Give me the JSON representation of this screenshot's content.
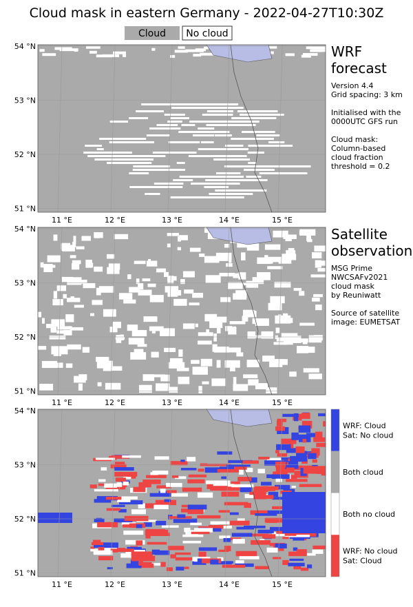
{
  "title": "Cloud mask in eastern Germany - 2022-04-27T10:30Z",
  "legend": [
    "Cloud",
    "No cloud"
  ],
  "panels": [
    {
      "heading": [
        "WRF",
        "forecast"
      ],
      "notes": [
        "Version 4.4",
        "Grid spacing: 3 km",
        "",
        "Initialised with the",
        "0000UTC GFS run",
        "",
        "Cloud mask:",
        "Column-based",
        "cloud fraction",
        "threshold = 0.2"
      ],
      "lat_labels": [
        "54 °N",
        "53 °N",
        "52 °N",
        "51 °N"
      ],
      "lon_labels": [
        "11 °E",
        "12 °E",
        "13 °E",
        "14 °E",
        "15 °E"
      ]
    },
    {
      "heading": [
        "Satellite",
        "observation"
      ],
      "notes": [
        "MSG Prime",
        "NWCSAFv2021",
        "cloud mask",
        "by Reuniwatt",
        "",
        "Source of satellite",
        "image: EUMETSAT"
      ],
      "lat_labels": [
        "54 °N",
        "53 °N",
        "52 °N",
        "51 °N"
      ],
      "lon_labels": [
        "11 °E",
        "12 °E",
        "13 °E",
        "14 °E",
        "15 °E"
      ]
    },
    {
      "lat_labels": [
        "54 °N",
        "53 °N",
        "52 °N",
        "51 °N"
      ],
      "lon_labels": [
        "11 °E",
        "12 °E",
        "13 °E",
        "14 °E",
        "15 °E"
      ],
      "colorbar": [
        [
          "WRF: Cloud",
          "Sat: No cloud"
        ],
        [
          "Both cloud"
        ],
        [
          "Both no cloud"
        ],
        [
          "WRF: No cloud",
          "Sat: Cloud"
        ]
      ]
    }
  ]
}
